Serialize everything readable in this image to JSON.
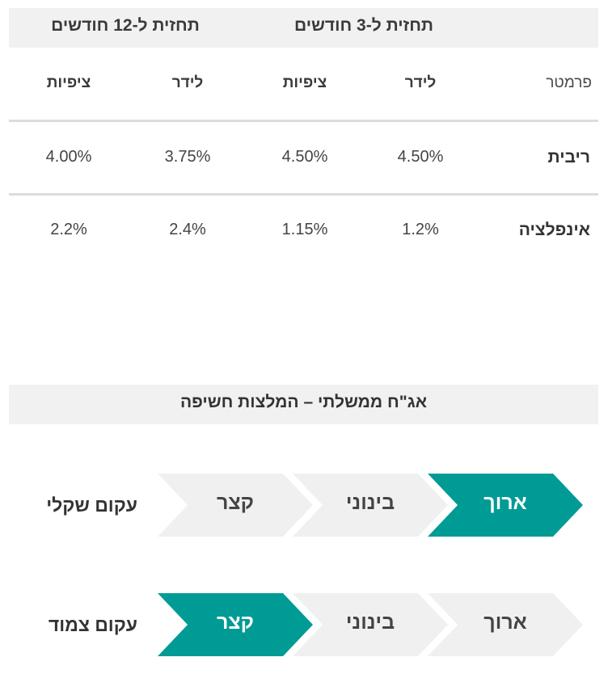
{
  "table": {
    "header_12m": "תחזית ל-12 חודשים",
    "header_3m": "תחזית ל-3 חודשים",
    "param_label": "פרמטר",
    "col_leader": "לידר",
    "col_expect": "ציפיות",
    "rows": [
      {
        "label": "ריבית",
        "leader_3m": "4.50%",
        "expect_3m": "4.50%",
        "leader_12m": "3.75%",
        "expect_12m": "4.00%"
      },
      {
        "label": "אינפלציה",
        "leader_3m": "1.2%",
        "expect_3m": "1.15%",
        "leader_12m": "2.4%",
        "expect_12m": "2.2%"
      }
    ]
  },
  "banner": {
    "title": "אג\"ח ממשלתי – המלצות חשיפה"
  },
  "curves": [
    {
      "label": "עקום שקלי",
      "long": "ארוך",
      "medium": "בינוני",
      "short": "קצר",
      "highlighted": "long"
    },
    {
      "label": "עקום צמוד",
      "long": "ארוך",
      "medium": "בינוני",
      "short": "קצר",
      "highlighted": "short"
    }
  ],
  "colors": {
    "accent": "#009b94",
    "inactive": "#f0f0f0",
    "band": "#f1f1f1",
    "rule": "#dcdcdc"
  }
}
